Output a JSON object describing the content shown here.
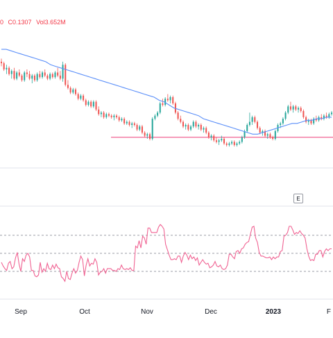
{
  "header": {
    "change_fragment": "0",
    "change_value": "C0.1307",
    "volume": "Vol3.652M"
  },
  "event_badge": "E",
  "colors": {
    "up": "#26a69a",
    "down": "#ef5350",
    "ma": "#5b8ff9",
    "hline": "#f06292",
    "rsi": "#f06292",
    "level_line": "#787b86",
    "bg": "#ffffff"
  },
  "chart_data": [
    {
      "type": "candlestick",
      "x_tick_labels": [
        "Sep",
        "Oct",
        "Nov",
        "Dec",
        "2023",
        "F"
      ],
      "price_range": [
        0.1,
        1.0
      ],
      "candles": [
        {
          "o": 0.78,
          "h": 0.8,
          "l": 0.75,
          "c": 0.77
        },
        {
          "o": 0.77,
          "h": 0.78,
          "l": 0.72,
          "c": 0.73
        },
        {
          "o": 0.73,
          "h": 0.76,
          "l": 0.7,
          "c": 0.74
        },
        {
          "o": 0.74,
          "h": 0.75,
          "l": 0.69,
          "c": 0.7
        },
        {
          "o": 0.7,
          "h": 0.73,
          "l": 0.67,
          "c": 0.72
        },
        {
          "o": 0.72,
          "h": 0.74,
          "l": 0.66,
          "c": 0.67
        },
        {
          "o": 0.67,
          "h": 0.72,
          "l": 0.66,
          "c": 0.71
        },
        {
          "o": 0.71,
          "h": 0.73,
          "l": 0.68,
          "c": 0.69
        },
        {
          "o": 0.69,
          "h": 0.7,
          "l": 0.65,
          "c": 0.66
        },
        {
          "o": 0.66,
          "h": 0.72,
          "l": 0.65,
          "c": 0.71
        },
        {
          "o": 0.71,
          "h": 0.73,
          "l": 0.68,
          "c": 0.7
        },
        {
          "o": 0.7,
          "h": 0.72,
          "l": 0.66,
          "c": 0.67
        },
        {
          "o": 0.67,
          "h": 0.7,
          "l": 0.64,
          "c": 0.69
        },
        {
          "o": 0.69,
          "h": 0.7,
          "l": 0.65,
          "c": 0.66
        },
        {
          "o": 0.66,
          "h": 0.71,
          "l": 0.65,
          "c": 0.7
        },
        {
          "o": 0.7,
          "h": 0.72,
          "l": 0.67,
          "c": 0.68
        },
        {
          "o": 0.68,
          "h": 0.72,
          "l": 0.67,
          "c": 0.71
        },
        {
          "o": 0.71,
          "h": 0.73,
          "l": 0.68,
          "c": 0.69
        },
        {
          "o": 0.69,
          "h": 0.7,
          "l": 0.66,
          "c": 0.67
        },
        {
          "o": 0.67,
          "h": 0.71,
          "l": 0.66,
          "c": 0.7
        },
        {
          "o": 0.7,
          "h": 0.71,
          "l": 0.67,
          "c": 0.68
        },
        {
          "o": 0.68,
          "h": 0.72,
          "l": 0.67,
          "c": 0.71
        },
        {
          "o": 0.71,
          "h": 0.74,
          "l": 0.68,
          "c": 0.69
        },
        {
          "o": 0.69,
          "h": 0.72,
          "l": 0.66,
          "c": 0.67
        },
        {
          "o": 0.67,
          "h": 0.78,
          "l": 0.65,
          "c": 0.76
        },
        {
          "o": 0.76,
          "h": 0.77,
          "l": 0.62,
          "c": 0.63
        },
        {
          "o": 0.63,
          "h": 0.66,
          "l": 0.6,
          "c": 0.61
        },
        {
          "o": 0.61,
          "h": 0.62,
          "l": 0.57,
          "c": 0.58
        },
        {
          "o": 0.58,
          "h": 0.61,
          "l": 0.57,
          "c": 0.6
        },
        {
          "o": 0.6,
          "h": 0.61,
          "l": 0.56,
          "c": 0.57
        },
        {
          "o": 0.57,
          "h": 0.58,
          "l": 0.53,
          "c": 0.54
        },
        {
          "o": 0.54,
          "h": 0.57,
          "l": 0.53,
          "c": 0.56
        },
        {
          "o": 0.56,
          "h": 0.57,
          "l": 0.52,
          "c": 0.53
        },
        {
          "o": 0.53,
          "h": 0.54,
          "l": 0.49,
          "c": 0.5
        },
        {
          "o": 0.5,
          "h": 0.53,
          "l": 0.49,
          "c": 0.52
        },
        {
          "o": 0.52,
          "h": 0.53,
          "l": 0.48,
          "c": 0.49
        },
        {
          "o": 0.49,
          "h": 0.53,
          "l": 0.48,
          "c": 0.52
        },
        {
          "o": 0.52,
          "h": 0.53,
          "l": 0.46,
          "c": 0.47
        },
        {
          "o": 0.47,
          "h": 0.49,
          "l": 0.43,
          "c": 0.44
        },
        {
          "o": 0.44,
          "h": 0.46,
          "l": 0.42,
          "c": 0.45
        },
        {
          "o": 0.45,
          "h": 0.46,
          "l": 0.41,
          "c": 0.42
        },
        {
          "o": 0.42,
          "h": 0.45,
          "l": 0.41,
          "c": 0.44
        },
        {
          "o": 0.44,
          "h": 0.45,
          "l": 0.42,
          "c": 0.43
        },
        {
          "o": 0.43,
          "h": 0.44,
          "l": 0.41,
          "c": 0.42
        },
        {
          "o": 0.42,
          "h": 0.44,
          "l": 0.4,
          "c": 0.43
        },
        {
          "o": 0.43,
          "h": 0.44,
          "l": 0.41,
          "c": 0.42
        },
        {
          "o": 0.42,
          "h": 0.43,
          "l": 0.39,
          "c": 0.4
        },
        {
          "o": 0.4,
          "h": 0.42,
          "l": 0.39,
          "c": 0.41
        },
        {
          "o": 0.41,
          "h": 0.42,
          "l": 0.37,
          "c": 0.38
        },
        {
          "o": 0.38,
          "h": 0.4,
          "l": 0.37,
          "c": 0.39
        },
        {
          "o": 0.39,
          "h": 0.4,
          "l": 0.36,
          "c": 0.37
        },
        {
          "o": 0.37,
          "h": 0.39,
          "l": 0.35,
          "c": 0.38
        },
        {
          "o": 0.38,
          "h": 0.39,
          "l": 0.36,
          "c": 0.37
        },
        {
          "o": 0.37,
          "h": 0.38,
          "l": 0.33,
          "c": 0.34
        },
        {
          "o": 0.34,
          "h": 0.37,
          "l": 0.33,
          "c": 0.36
        },
        {
          "o": 0.36,
          "h": 0.37,
          "l": 0.31,
          "c": 0.32
        },
        {
          "o": 0.32,
          "h": 0.33,
          "l": 0.29,
          "c": 0.3
        },
        {
          "o": 0.3,
          "h": 0.32,
          "l": 0.28,
          "c": 0.31
        },
        {
          "o": 0.31,
          "h": 0.32,
          "l": 0.27,
          "c": 0.28
        },
        {
          "o": 0.28,
          "h": 0.42,
          "l": 0.27,
          "c": 0.41
        },
        {
          "o": 0.41,
          "h": 0.44,
          "l": 0.4,
          "c": 0.43
        },
        {
          "o": 0.43,
          "h": 0.46,
          "l": 0.42,
          "c": 0.45
        },
        {
          "o": 0.45,
          "h": 0.52,
          "l": 0.44,
          "c": 0.51
        },
        {
          "o": 0.51,
          "h": 0.54,
          "l": 0.49,
          "c": 0.5
        },
        {
          "o": 0.5,
          "h": 0.55,
          "l": 0.49,
          "c": 0.54
        },
        {
          "o": 0.54,
          "h": 0.57,
          "l": 0.52,
          "c": 0.53
        },
        {
          "o": 0.53,
          "h": 0.56,
          "l": 0.51,
          "c": 0.55
        },
        {
          "o": 0.55,
          "h": 0.56,
          "l": 0.5,
          "c": 0.51
        },
        {
          "o": 0.51,
          "h": 0.52,
          "l": 0.44,
          "c": 0.45
        },
        {
          "o": 0.45,
          "h": 0.46,
          "l": 0.4,
          "c": 0.41
        },
        {
          "o": 0.41,
          "h": 0.43,
          "l": 0.38,
          "c": 0.39
        },
        {
          "o": 0.39,
          "h": 0.4,
          "l": 0.35,
          "c": 0.36
        },
        {
          "o": 0.36,
          "h": 0.38,
          "l": 0.34,
          "c": 0.37
        },
        {
          "o": 0.37,
          "h": 0.38,
          "l": 0.33,
          "c": 0.34
        },
        {
          "o": 0.34,
          "h": 0.37,
          "l": 0.33,
          "c": 0.36
        },
        {
          "o": 0.36,
          "h": 0.4,
          "l": 0.35,
          "c": 0.39
        },
        {
          "o": 0.39,
          "h": 0.4,
          "l": 0.35,
          "c": 0.36
        },
        {
          "o": 0.36,
          "h": 0.38,
          "l": 0.34,
          "c": 0.37
        },
        {
          "o": 0.37,
          "h": 0.38,
          "l": 0.33,
          "c": 0.34
        },
        {
          "o": 0.34,
          "h": 0.36,
          "l": 0.32,
          "c": 0.35
        },
        {
          "o": 0.35,
          "h": 0.36,
          "l": 0.31,
          "c": 0.32
        },
        {
          "o": 0.32,
          "h": 0.33,
          "l": 0.28,
          "c": 0.29
        },
        {
          "o": 0.29,
          "h": 0.31,
          "l": 0.27,
          "c": 0.3
        },
        {
          "o": 0.3,
          "h": 0.31,
          "l": 0.26,
          "c": 0.27
        },
        {
          "o": 0.27,
          "h": 0.29,
          "l": 0.25,
          "c": 0.26
        },
        {
          "o": 0.26,
          "h": 0.28,
          "l": 0.24,
          "c": 0.27
        },
        {
          "o": 0.27,
          "h": 0.3,
          "l": 0.26,
          "c": 0.28
        },
        {
          "o": 0.28,
          "h": 0.29,
          "l": 0.24,
          "c": 0.25
        },
        {
          "o": 0.25,
          "h": 0.26,
          "l": 0.23,
          "c": 0.24
        },
        {
          "o": 0.24,
          "h": 0.26,
          "l": 0.23,
          "c": 0.25
        },
        {
          "o": 0.25,
          "h": 0.27,
          "l": 0.24,
          "c": 0.26
        },
        {
          "o": 0.26,
          "h": 0.27,
          "l": 0.23,
          "c": 0.24
        },
        {
          "o": 0.24,
          "h": 0.26,
          "l": 0.23,
          "c": 0.25
        },
        {
          "o": 0.25,
          "h": 0.27,
          "l": 0.24,
          "c": 0.26
        },
        {
          "o": 0.26,
          "h": 0.3,
          "l": 0.25,
          "c": 0.29
        },
        {
          "o": 0.29,
          "h": 0.34,
          "l": 0.28,
          "c": 0.33
        },
        {
          "o": 0.33,
          "h": 0.38,
          "l": 0.32,
          "c": 0.37
        },
        {
          "o": 0.37,
          "h": 0.45,
          "l": 0.36,
          "c": 0.39
        },
        {
          "o": 0.39,
          "h": 0.43,
          "l": 0.37,
          "c": 0.42
        },
        {
          "o": 0.42,
          "h": 0.43,
          "l": 0.38,
          "c": 0.39
        },
        {
          "o": 0.39,
          "h": 0.4,
          "l": 0.34,
          "c": 0.35
        },
        {
          "o": 0.35,
          "h": 0.36,
          "l": 0.31,
          "c": 0.32
        },
        {
          "o": 0.32,
          "h": 0.34,
          "l": 0.3,
          "c": 0.33
        },
        {
          "o": 0.33,
          "h": 0.34,
          "l": 0.29,
          "c": 0.3
        },
        {
          "o": 0.3,
          "h": 0.32,
          "l": 0.28,
          "c": 0.31
        },
        {
          "o": 0.31,
          "h": 0.32,
          "l": 0.28,
          "c": 0.29
        },
        {
          "o": 0.29,
          "h": 0.3,
          "l": 0.27,
          "c": 0.28
        },
        {
          "o": 0.28,
          "h": 0.34,
          "l": 0.27,
          "c": 0.33
        },
        {
          "o": 0.33,
          "h": 0.38,
          "l": 0.32,
          "c": 0.37
        },
        {
          "o": 0.37,
          "h": 0.39,
          "l": 0.35,
          "c": 0.38
        },
        {
          "o": 0.38,
          "h": 0.42,
          "l": 0.37,
          "c": 0.41
        },
        {
          "o": 0.41,
          "h": 0.46,
          "l": 0.4,
          "c": 0.45
        },
        {
          "o": 0.45,
          "h": 0.5,
          "l": 0.44,
          "c": 0.49
        },
        {
          "o": 0.49,
          "h": 0.52,
          "l": 0.46,
          "c": 0.47
        },
        {
          "o": 0.47,
          "h": 0.5,
          "l": 0.45,
          "c": 0.49
        },
        {
          "o": 0.49,
          "h": 0.5,
          "l": 0.46,
          "c": 0.47
        },
        {
          "o": 0.47,
          "h": 0.49,
          "l": 0.45,
          "c": 0.48
        },
        {
          "o": 0.48,
          "h": 0.49,
          "l": 0.45,
          "c": 0.46
        },
        {
          "o": 0.46,
          "h": 0.47,
          "l": 0.41,
          "c": 0.42
        },
        {
          "o": 0.42,
          "h": 0.43,
          "l": 0.38,
          "c": 0.39
        },
        {
          "o": 0.39,
          "h": 0.41,
          "l": 0.37,
          "c": 0.4
        },
        {
          "o": 0.4,
          "h": 0.41,
          "l": 0.37,
          "c": 0.38
        },
        {
          "o": 0.38,
          "h": 0.42,
          "l": 0.37,
          "c": 0.41
        },
        {
          "o": 0.41,
          "h": 0.43,
          "l": 0.39,
          "c": 0.4
        },
        {
          "o": 0.4,
          "h": 0.43,
          "l": 0.39,
          "c": 0.42
        },
        {
          "o": 0.42,
          "h": 0.44,
          "l": 0.4,
          "c": 0.41
        },
        {
          "o": 0.41,
          "h": 0.44,
          "l": 0.4,
          "c": 0.43
        },
        {
          "o": 0.43,
          "h": 0.45,
          "l": 0.41,
          "c": 0.42
        },
        {
          "o": 0.42,
          "h": 0.45,
          "l": 0.41,
          "c": 0.44
        },
        {
          "o": 0.44,
          "h": 0.46,
          "l": 0.43,
          "c": 0.45
        }
      ],
      "moving_average": [
        0.86,
        0.86,
        0.85,
        0.84,
        0.83,
        0.82,
        0.81,
        0.8,
        0.79,
        0.78,
        0.76,
        0.75,
        0.74,
        0.73,
        0.72,
        0.71,
        0.7,
        0.69,
        0.68,
        0.67,
        0.66,
        0.65,
        0.64,
        0.63,
        0.62,
        0.61,
        0.6,
        0.59,
        0.58,
        0.57,
        0.56,
        0.55,
        0.53,
        0.52,
        0.5,
        0.48,
        0.47,
        0.46,
        0.45,
        0.44,
        0.43,
        0.41,
        0.4,
        0.39,
        0.38,
        0.37,
        0.36,
        0.35,
        0.34,
        0.33,
        0.32,
        0.31,
        0.31,
        0.32,
        0.33,
        0.34,
        0.35,
        0.36,
        0.37,
        0.38,
        0.38,
        0.39,
        0.4,
        0.4,
        0.41,
        0.41,
        0.42,
        0.42
      ],
      "support_level": 0.29
    },
    {
      "type": "line",
      "x_tick_labels": [
        "Sep",
        "Oct",
        "Nov",
        "Dec",
        "2023",
        "F"
      ],
      "y_range": [
        0,
        100
      ],
      "level_lines": [
        70,
        50,
        30
      ],
      "series": [
        {
          "values": [
            40,
            36,
            33,
            31,
            39,
            41,
            33,
            35,
            45,
            51,
            38,
            30,
            44,
            41,
            48,
            50,
            46,
            31,
            31,
            25,
            24,
            26,
            40,
            29,
            33,
            30,
            39,
            33,
            32,
            37,
            33,
            38,
            34,
            33,
            24,
            22,
            19,
            30,
            22,
            21,
            28,
            33,
            28,
            31,
            40,
            47,
            43,
            25,
            37,
            44,
            36,
            39,
            38,
            44,
            40,
            26,
            29,
            30,
            33,
            28,
            33,
            33,
            33,
            31,
            31,
            30,
            33,
            32,
            37,
            33,
            32,
            33,
            32,
            34,
            31,
            31,
            58,
            56,
            64,
            56,
            69,
            67,
            60,
            78,
            78,
            73,
            73,
            73,
            73,
            79,
            82,
            80,
            77,
            60,
            54,
            48,
            43,
            43,
            44,
            43,
            47,
            47,
            40,
            47,
            51,
            48,
            43,
            48,
            44,
            46,
            42,
            45,
            37,
            40,
            43,
            40,
            38,
            39,
            34,
            35,
            37,
            41,
            36,
            35,
            37,
            33,
            32,
            33,
            37,
            49,
            49,
            46,
            44,
            52,
            53,
            50,
            55,
            56,
            60,
            62,
            63,
            71,
            79,
            80,
            67,
            62,
            51,
            47,
            47,
            46,
            45,
            45,
            46,
            43,
            46,
            44,
            46,
            46,
            52,
            53,
            69,
            70,
            73,
            80,
            80,
            76,
            71,
            73,
            72,
            75,
            72,
            70,
            67,
            55,
            47,
            42,
            43,
            42,
            49,
            49,
            53,
            53,
            46,
            52,
            55,
            53,
            55,
            55
          ]
        }
      ]
    }
  ]
}
